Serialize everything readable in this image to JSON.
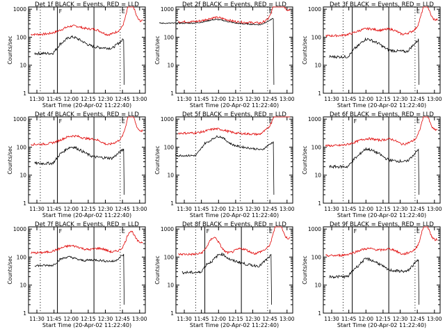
{
  "xlabel": "Start Time (20-Apr-02 11:22:40)",
  "ylabel": "Counts/sec",
  "x_ticks": [
    "11:30",
    "11:45",
    "12:00",
    "12:15",
    "12:30",
    "12:45",
    "13:00"
  ],
  "y_ticks": [
    "1",
    "10",
    "100",
    "1000"
  ],
  "colors": {
    "events": "#000000",
    "lld": "#e00000",
    "axes": "#000000"
  },
  "chart_data": [
    {
      "type": "line",
      "title": "Det 1f BLACK = Events, RED = LLD",
      "series": [
        {
          "name": "Events",
          "color": "#000000"
        },
        {
          "name": "LLD",
          "color": "#e00000"
        }
      ],
      "ylog": true,
      "ylim": [
        1,
        1200
      ],
      "xlim": [
        "11:22:40",
        "13:05"
      ],
      "markers": [
        "11:33",
        "11:48",
        "12:20",
        "12:43"
      ],
      "solid_markers": [
        "11:48",
        "12:20"
      ],
      "flags": [
        "F",
        "E"
      ],
      "shape": "det1"
    },
    {
      "type": "line",
      "title": "Det 2f BLACK = Events, RED = LLD",
      "series": [
        {
          "name": "Events",
          "color": "#000000"
        },
        {
          "name": "LLD",
          "color": "#e00000"
        }
      ],
      "ylog": true,
      "ylim": [
        1,
        1200
      ],
      "xlim": [
        "11:22:40",
        "13:05"
      ],
      "markers": [
        "11:40",
        "12:19",
        "12:43"
      ],
      "solid_markers": [],
      "flags": [
        "E"
      ],
      "shape": "det2"
    },
    {
      "type": "line",
      "title": "Det 3f BLACK = Events, RED = LLD",
      "series": [
        {
          "name": "Events",
          "color": "#000000"
        },
        {
          "name": "LLD",
          "color": "#e00000"
        }
      ],
      "ylog": true,
      "ylim": [
        1,
        1200
      ],
      "xlim": [
        "11:22:40",
        "13:05"
      ],
      "markers": [
        "11:40",
        "11:48",
        "12:20",
        "12:43"
      ],
      "solid_markers": [
        "11:48",
        "12:20"
      ],
      "flags": [
        "E"
      ],
      "shape": "det3"
    },
    {
      "type": "line",
      "title": "Det 4f BLACK = Events, RED = LLD",
      "series": [
        {
          "name": "Events",
          "color": "#000000"
        },
        {
          "name": "LLD",
          "color": "#e00000"
        }
      ],
      "ylog": true,
      "ylim": [
        1,
        1200
      ],
      "xlim": [
        "11:22:40",
        "13:05"
      ],
      "markers": [
        "11:33",
        "11:48",
        "12:20",
        "12:43"
      ],
      "solid_markers": [
        "11:48",
        "12:20"
      ],
      "flags": [
        "F",
        "E"
      ],
      "shape": "det1"
    },
    {
      "type": "line",
      "title": "Det 5f BLACK = Events, RED = LLD",
      "series": [
        {
          "name": "Events",
          "color": "#000000"
        },
        {
          "name": "LLD",
          "color": "#e00000"
        }
      ],
      "ylog": true,
      "ylim": [
        1,
        1200
      ],
      "xlim": [
        "11:22:40",
        "13:05"
      ],
      "markers": [
        "11:40",
        "12:19",
        "12:43"
      ],
      "solid_markers": [],
      "flags": [
        "E"
      ],
      "shape": "det5"
    },
    {
      "type": "line",
      "title": "Det 6f BLACK = Events, RED = LLD",
      "series": [
        {
          "name": "Events",
          "color": "#000000"
        },
        {
          "name": "LLD",
          "color": "#e00000"
        }
      ],
      "ylog": true,
      "ylim": [
        1,
        1200
      ],
      "xlim": [
        "11:22:40",
        "13:05"
      ],
      "markers": [
        "11:40",
        "11:48",
        "12:20",
        "12:43"
      ],
      "solid_markers": [
        "11:48",
        "12:20"
      ],
      "flags": [
        "F",
        "E"
      ],
      "shape": "det3"
    },
    {
      "type": "line",
      "title": "Det 7f BLACK = Events, RED = LLD",
      "series": [
        {
          "name": "Events",
          "color": "#000000"
        },
        {
          "name": "LLD",
          "color": "#e00000"
        }
      ],
      "ylog": true,
      "ylim": [
        1,
        1200
      ],
      "xlim": [
        "11:22:40",
        "13:05"
      ],
      "markers": [
        "11:33",
        "11:48",
        "12:20",
        "12:43"
      ],
      "solid_markers": [
        "11:48",
        "12:20"
      ],
      "flags": [
        "F",
        "E"
      ],
      "shape": "det7"
    },
    {
      "type": "line",
      "title": "Det 8f BLACK = Events, RED = LLD",
      "series": [
        {
          "name": "Events",
          "color": "#000000"
        },
        {
          "name": "LLD",
          "color": "#e00000"
        }
      ],
      "ylog": true,
      "ylim": [
        1,
        1200
      ],
      "xlim": [
        "11:22:40",
        "13:05"
      ],
      "markers": [
        "11:40",
        "11:48",
        "12:20",
        "12:43"
      ],
      "solid_markers": [
        "11:48",
        "12:20"
      ],
      "flags": [
        "F",
        "E"
      ],
      "shape": "det8"
    },
    {
      "type": "line",
      "title": "Det 9f BLACK = Events, RED = LLD",
      "series": [
        {
          "name": "Events",
          "color": "#000000"
        },
        {
          "name": "LLD",
          "color": "#e00000"
        }
      ],
      "ylog": true,
      "ylim": [
        1,
        1200
      ],
      "xlim": [
        "11:22:40",
        "13:05"
      ],
      "markers": [
        "11:40",
        "11:48",
        "12:20",
        "12:43"
      ],
      "solid_markers": [
        "11:48",
        "12:20"
      ],
      "flags": [
        "F",
        "E"
      ],
      "shape": "det3"
    }
  ]
}
